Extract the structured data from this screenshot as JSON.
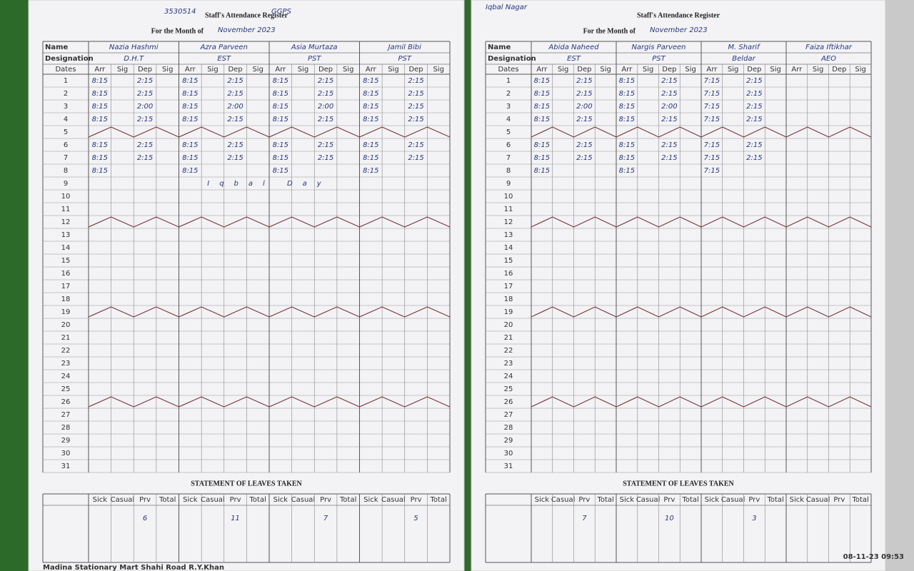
{
  "top_notes": {
    "code": "3530514",
    "school": "GGPS",
    "place": "Iqbal Nagar"
  },
  "pages": [
    {
      "title": "Staff's Attendance Register",
      "month_label": "For the Month of",
      "month": "November 2023",
      "name_label": "Name",
      "designation_label": "Designation",
      "dates_label": "Dates",
      "columns": [
        "Arr",
        "Sig",
        "Dep",
        "Sig"
      ],
      "dates": [
        1,
        2,
        3,
        4,
        5,
        6,
        7,
        8,
        9,
        10,
        11,
        12,
        13,
        14,
        15,
        16,
        17,
        18,
        19,
        20,
        21,
        22,
        23,
        24,
        25,
        26,
        27,
        28,
        29,
        30,
        31
      ],
      "staff": [
        {
          "name": "Nazia Hashmi",
          "designation": "D.H.T",
          "arrivals": [
            "8:15",
            "8:15",
            "8:15",
            "8:15",
            null,
            "8:15",
            "8:15",
            "8:15"
          ],
          "departures": [
            "2:15",
            "2:15",
            "2:00",
            "2:15",
            null,
            "2:15",
            "2:15"
          ],
          "leaves_prv": "6"
        },
        {
          "name": "Azra Parveen",
          "designation": "EST",
          "arrivals": [
            "8:15",
            "8:15",
            "8:15",
            "8:15",
            null,
            "8:15",
            "8:15",
            "8:15"
          ],
          "departures": [
            "2:15",
            "2:15",
            "2:00",
            "2:15",
            null,
            "2:15",
            "2:15"
          ],
          "leaves_prv": "11"
        },
        {
          "name": "Asia Murtaza",
          "designation": "PST",
          "arrivals": [
            "8:15",
            "8:15",
            "8:15",
            "8:15",
            null,
            "8:15",
            "8:15",
            "8:15"
          ],
          "departures": [
            "2:15",
            "2:15",
            "2:00",
            "2:15",
            null,
            "2:15",
            "2:15"
          ],
          "leaves_prv": "7"
        },
        {
          "name": "Jamil Bibi",
          "designation": "PST",
          "arrivals": [
            "8:15",
            "8:15",
            "8:15",
            "8:15",
            null,
            "8:15",
            "8:15",
            "8:15"
          ],
          "departures": [
            "2:15",
            "2:15",
            "2:15",
            "2:15",
            null,
            "2:15",
            "2:15"
          ],
          "leaves_prv": "5"
        }
      ],
      "annotation": "Iqbal Day",
      "leaves_title": "STATEMENT OF LEAVES TAKEN",
      "leave_columns": [
        "Sick",
        "Casual",
        "Prv",
        "Total"
      ],
      "footer": "Madina Stationary Mart Shahi Road R.Y.Khan"
    },
    {
      "title": "Staff's Attendance Register",
      "month_label": "For the Month of",
      "month": "November 2023",
      "name_label": "Name",
      "designation_label": "Designation",
      "dates_label": "Dates",
      "columns": [
        "Arr",
        "Sig",
        "Dep",
        "Sig"
      ],
      "dates": [
        1,
        2,
        3,
        4,
        5,
        6,
        7,
        8,
        9,
        10,
        11,
        12,
        13,
        14,
        15,
        16,
        17,
        18,
        19,
        20,
        21,
        22,
        23,
        24,
        25,
        26,
        27,
        28,
        29,
        30,
        31
      ],
      "staff": [
        {
          "name": "Abida Naheed",
          "designation": "EST",
          "arrivals": [
            "8:15",
            "8:15",
            "8:15",
            "8:15",
            null,
            "8:15",
            "8:15",
            "8:15"
          ],
          "departures": [
            "2:15",
            "2:15",
            "2:00",
            "2:15",
            null,
            "2:15",
            "2:15"
          ],
          "leaves_prv": "7"
        },
        {
          "name": "Nargis Parveen",
          "designation": "PST",
          "arrivals": [
            "8:15",
            "8:15",
            "8:15",
            "8:15",
            null,
            "8:15",
            "8:15",
            "8:15"
          ],
          "departures": [
            "2:15",
            "2:15",
            "2:00",
            "2:15",
            null,
            "2:15",
            "2:15"
          ],
          "leaves_prv": "10"
        },
        {
          "name": "M. Sharif",
          "designation": "Beldar",
          "arrivals": [
            "7:15",
            "7:15",
            "7:15",
            "7:15",
            null,
            "7:15",
            "7:15",
            "7:15"
          ],
          "departures": [
            "2:15",
            "2:15",
            "2:15",
            "2:15",
            null,
            "2:15",
            "2:15"
          ],
          "leaves_prv": "3"
        },
        {
          "name": "Faiza Iftikhar",
          "designation": "AEO",
          "arrivals": [],
          "departures": []
        }
      ],
      "leaves_title": "STATEMENT OF LEAVES TAKEN",
      "leave_columns": [
        "Sick",
        "Casual",
        "Prv",
        "Total"
      ]
    }
  ],
  "timestamp": "08-11-23 09:53"
}
